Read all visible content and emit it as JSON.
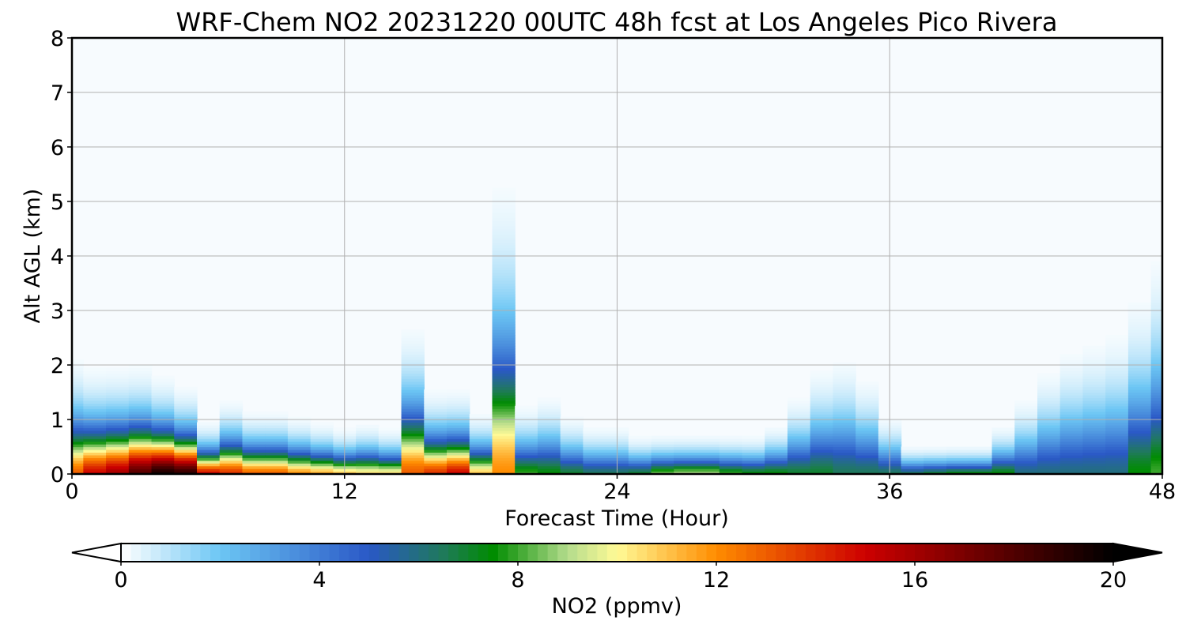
{
  "chart_data": {
    "type": "heatmap",
    "title": "WRF-Chem NO2  20231220 00UTC 48h fcst at Los Angeles Pico Rivera",
    "xlabel": "Forecast Time (Hour)",
    "ylabel": "Alt AGL (km)",
    "xlim": [
      0,
      48
    ],
    "ylim": [
      0,
      8
    ],
    "xticks": [
      "0",
      "12",
      "24",
      "36",
      "48"
    ],
    "yticks": [
      "0",
      "1",
      "2",
      "3",
      "4",
      "5",
      "6",
      "7",
      "8"
    ],
    "grid": true,
    "colorbar": {
      "label": "NO2  (ppmv)",
      "range": [
        0,
        20
      ],
      "ticks": [
        "0",
        "4",
        "8",
        "12",
        "16",
        "20"
      ],
      "extend": "both",
      "under_color": "#ffffff",
      "over_color": "#000000",
      "colormap_stops": [
        {
          "value": 0,
          "color": "#ffffff"
        },
        {
          "value": 2,
          "color": "#6cc6f4"
        },
        {
          "value": 5,
          "color": "#2a58c6"
        },
        {
          "value": 6.5,
          "color": "#1f7a5a"
        },
        {
          "value": 7.5,
          "color": "#008c00"
        },
        {
          "value": 9,
          "color": "#b4dc8c"
        },
        {
          "value": 10,
          "color": "#fffa96"
        },
        {
          "value": 12,
          "color": "#ff8c00"
        },
        {
          "value": 15,
          "color": "#cd0000"
        },
        {
          "value": 18,
          "color": "#500000"
        },
        {
          "value": 20,
          "color": "#000000"
        }
      ]
    },
    "hours": [
      0,
      1,
      2,
      3,
      4,
      5,
      6,
      7,
      8,
      9,
      10,
      11,
      12,
      13,
      14,
      15,
      16,
      17,
      18,
      19,
      20,
      21,
      22,
      23,
      24,
      25,
      26,
      27,
      28,
      29,
      30,
      31,
      32,
      33,
      34,
      35,
      36,
      37,
      38,
      39,
      40,
      41,
      42,
      43,
      44,
      45,
      46,
      47,
      48
    ],
    "surface_no2": [
      13,
      15,
      16,
      18,
      19.5,
      19,
      15,
      14,
      13,
      13,
      12,
      11.5,
      11,
      10.5,
      10.5,
      13,
      14,
      15,
      11,
      12,
      8,
      7.5,
      7,
      6.5,
      6.5,
      7,
      8.5,
      9,
      9,
      8,
      7.5,
      7.5,
      7,
      7,
      6.5,
      6.5,
      6.5,
      6.5,
      7,
      7.5,
      7.5,
      7.5,
      6,
      6,
      6,
      6,
      6,
      7.5,
      8
    ],
    "boundary_layer_depth_km": [
      1.1,
      1.0,
      1.0,
      1.0,
      0.9,
      0.8,
      0.5,
      0.7,
      0.6,
      0.6,
      0.55,
      0.5,
      0.45,
      0.5,
      0.45,
      1.4,
      0.8,
      0.8,
      0.6,
      2.8,
      0.7,
      0.8,
      0.6,
      0.5,
      0.5,
      0.4,
      0.4,
      0.4,
      0.4,
      0.4,
      0.4,
      0.5,
      0.8,
      1.1,
      1.2,
      1.0,
      0.6,
      0.3,
      0.3,
      0.3,
      0.3,
      0.5,
      0.8,
      1.1,
      1.3,
      1.4,
      1.5,
      1.8,
      2.2
    ]
  }
}
